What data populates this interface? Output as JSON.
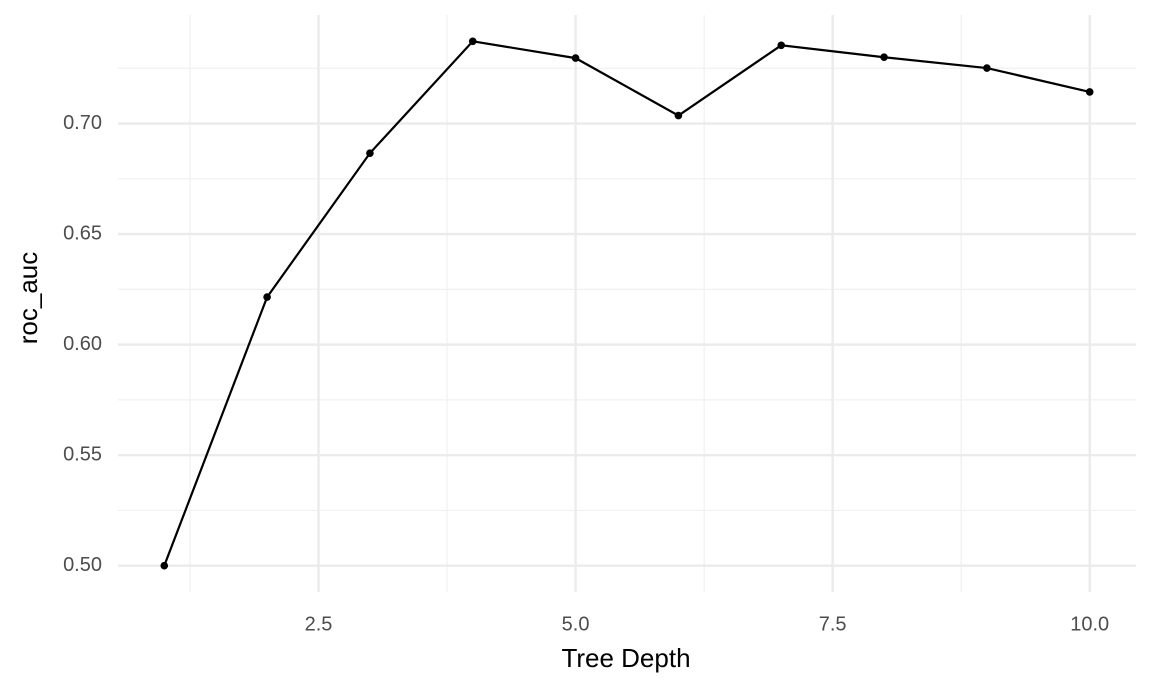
{
  "chart_data": {
    "type": "line",
    "x_label": "Tree Depth",
    "y_label": "roc_auc",
    "x": [
      1,
      2,
      3,
      4,
      5,
      6,
      7,
      8,
      9,
      10
    ],
    "series": [
      {
        "color": "#000000",
        "values": [
          0.5,
          0.6215,
          0.6866,
          0.7372,
          0.7296,
          0.7036,
          0.7354,
          0.73,
          0.7251,
          0.7143
        ]
      }
    ],
    "xlim": [
      0.55,
      10.45
    ],
    "ylim": [
      0.4881,
      0.7491
    ],
    "xticks": [
      {
        "value": 2.5,
        "label": "2.5"
      },
      {
        "value": 5,
        "label": "5.0"
      },
      {
        "value": 7.5,
        "label": "7.5"
      },
      {
        "value": 10,
        "label": "10.0"
      }
    ],
    "yticks": [
      {
        "value": 0.5,
        "label": "0.50"
      },
      {
        "value": 0.55,
        "label": "0.55"
      },
      {
        "value": 0.6,
        "label": "0.60"
      },
      {
        "value": 0.65,
        "label": "0.65"
      },
      {
        "value": 0.7,
        "label": "0.70"
      }
    ],
    "minor_xticks": [
      1.25,
      3.75,
      6.25,
      8.75
    ],
    "minor_yticks": [
      0.525,
      0.575,
      0.625,
      0.675,
      0.725
    ],
    "grid": true
  }
}
